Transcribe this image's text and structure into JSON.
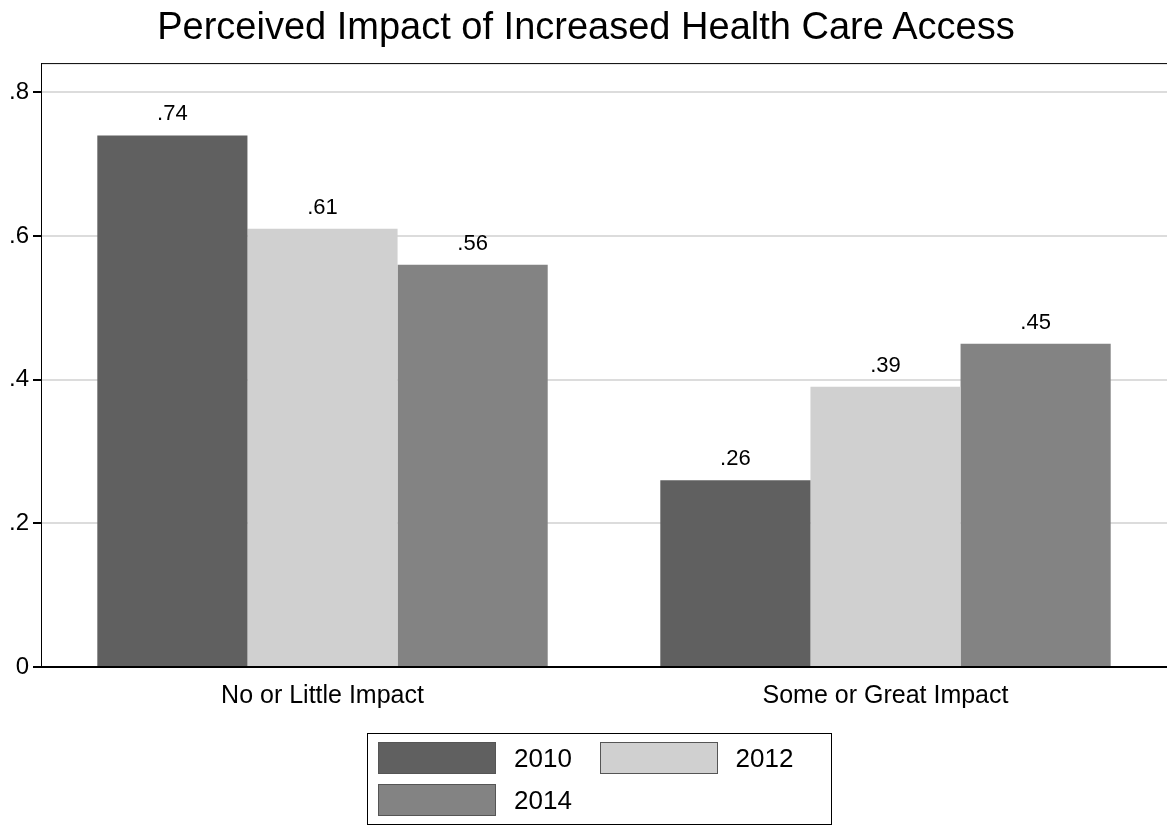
{
  "chart_data": {
    "type": "bar",
    "title": "Perceived Impact of Increased Health Care Access",
    "categories": [
      "No or Little Impact",
      "Some or Great Impact"
    ],
    "series": [
      {
        "name": "2010",
        "color": "#606060",
        "values": [
          0.74,
          0.26
        ],
        "value_labels": [
          ".74",
          ".26"
        ]
      },
      {
        "name": "2012",
        "color": "#d0d0d0",
        "values": [
          0.61,
          0.39
        ],
        "value_labels": [
          ".61",
          ".39"
        ]
      },
      {
        "name": "2014",
        "color": "#838383",
        "values": [
          0.56,
          0.45
        ],
        "value_labels": [
          ".56",
          ".45"
        ]
      }
    ],
    "ylim": [
      0,
      0.84
    ],
    "yticks": [
      {
        "value": 0,
        "label": "0"
      },
      {
        "value": 0.2,
        "label": ".2"
      },
      {
        "value": 0.4,
        "label": ".4"
      },
      {
        "value": 0.6,
        "label": ".6"
      },
      {
        "value": 0.8,
        "label": ".8"
      }
    ],
    "grid": "y",
    "legend": "bottom"
  }
}
